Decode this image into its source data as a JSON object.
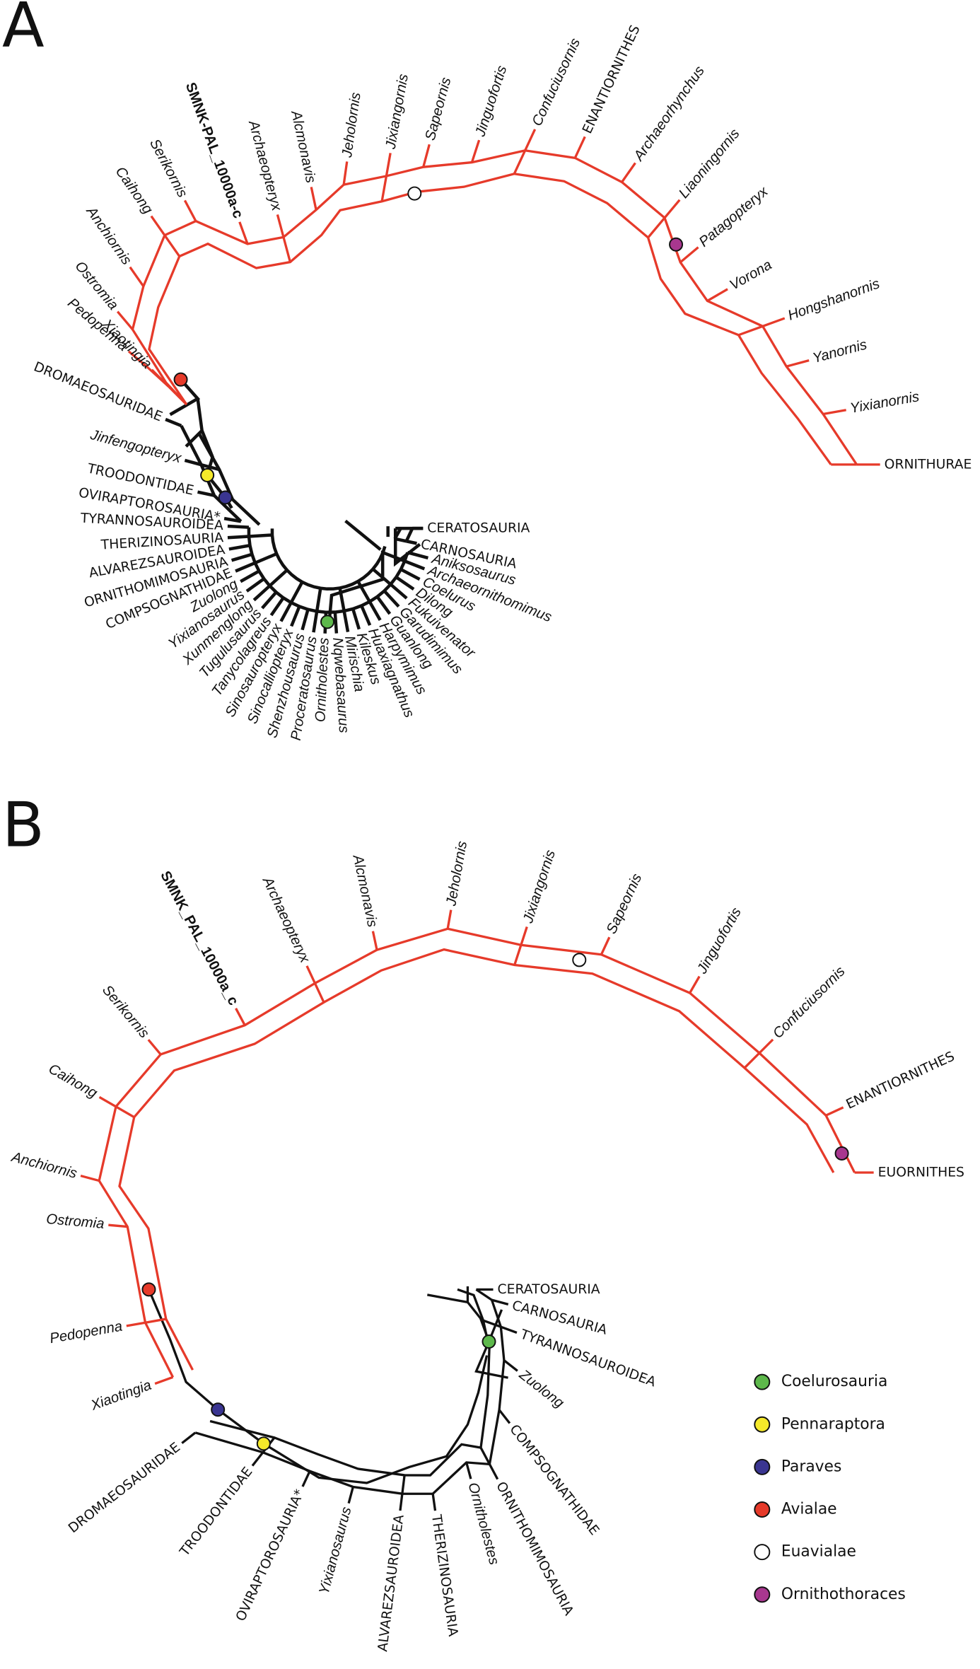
{
  "panel_a": {
    "label": "A",
    "avialae": [
      "Pedopenna",
      "Xiaotingia",
      "Ostromia",
      "Anchiornis",
      "Caihong",
      "Serikornis",
      "SMNK-PAL_10000a-c",
      "Archaeopteryx",
      "Alcmonavis",
      "Jeholornis",
      "Jixiangornis",
      "Sapeornis",
      "Jinguofortis",
      "Confuciusornis",
      "ENANTIORNITHES",
      "Archaeorhynchus",
      "Liaoningornis",
      "Patagopteryx",
      "Vorona",
      "Hongshanornis",
      "Yanornis",
      "Yixianornis",
      "ORNITHURAE"
    ],
    "paraves": [
      "DROMAEOSAURIDAE",
      "Jinfengopteryx",
      "TROODONTIDAE",
      "OVIRAPTOROSAURIA*"
    ],
    "coelurosaurs": [
      "TYRANNOSAUROIDEA",
      "THERIZINOSAURIA",
      "ALVAREZSAUROIDEA",
      "ORNITHOMIMOSAURIA",
      "COMPSOGNATHIDAE",
      "Zuolong",
      "Yixianosaurus",
      "Xunmenglong",
      "Tugulusaurus",
      "Tanycolagreus",
      "Sinosauropteryx",
      "Sinocalliopteryx",
      "Shenzhousaurus",
      "Proceratosaurus",
      "Ornitholestes",
      "Nqwebasaurus",
      "Mirischia",
      "Kileskus",
      "Huaxiagnathus",
      "Harpymimus",
      "Guanlong",
      "Garudimimus",
      "Fukuivenator",
      "Dilong",
      "Coelurus",
      "Archaeornithomimus",
      "Aniksosaurus"
    ],
    "outgroups": [
      "CERATOSAURIA",
      "CARNOSAURIA"
    ]
  },
  "panel_b": {
    "label": "B",
    "avialae": [
      "Xiaotingia",
      "Pedopenna",
      "Ostromia",
      "Anchiornis",
      "Caihong",
      "Serikornis",
      "SMNK_PAL_10000a_c",
      "Archaeopteryx",
      "Alcmonavis",
      "Jeholornis",
      "Jixiangornis",
      "Sapeornis",
      "Jinguofortis",
      "Confuciusornis",
      "ENANTIORNITHES",
      "EUORNITHES"
    ],
    "theropods": [
      "DROMAEOSAURIDAE",
      "TROODONTIDAE",
      "OVIRAPTOROSAURIA*",
      "Yixianosaurus",
      "ALVAREZSAUROIDEA",
      "THERIZINOSAURIA",
      "Ornitholestes",
      "ORNITHOMIMOSAURIA",
      "COMPSOGNATHIDAE",
      "Zuolong",
      "TYRANNOSAUROIDEA",
      "CARNOSAURIA",
      "CERATOSAURIA"
    ]
  },
  "legend": [
    {
      "label": "Coelurosauria",
      "color": "#5db84b"
    },
    {
      "label": "Pennaraptora",
      "color": "#f5e92a"
    },
    {
      "label": "Paraves",
      "color": "#3a3591"
    },
    {
      "label": "Avialae",
      "color": "#e63a2a"
    },
    {
      "label": "Euavialae",
      "color": "#ffffff"
    },
    {
      "label": "Ornithothoraces",
      "color": "#a8378f"
    }
  ]
}
